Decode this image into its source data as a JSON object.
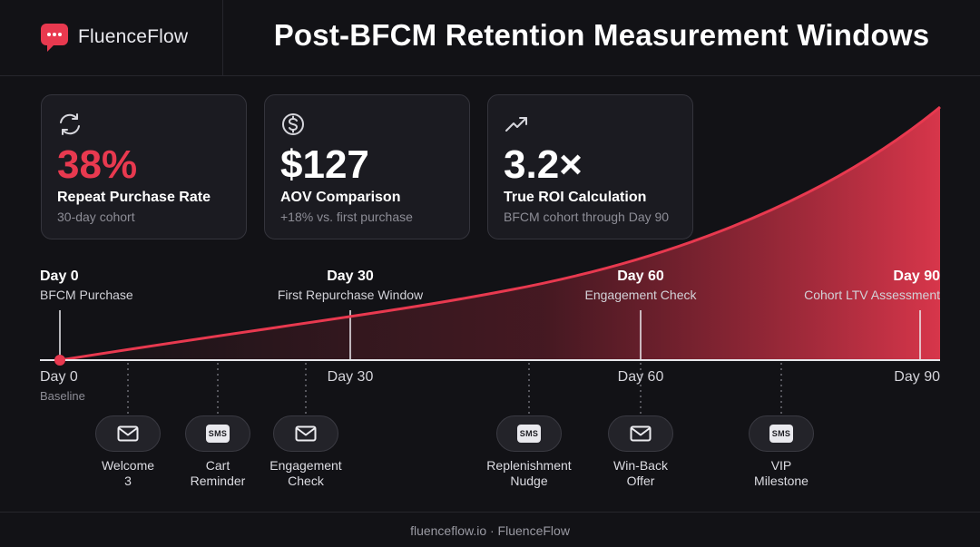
{
  "brand": {
    "name": "FluenceFlow",
    "logo_icon": "chat-bubble-icon",
    "accent": "#e8394f"
  },
  "header": {
    "title": "Post-BFCM Retention Measurement Windows"
  },
  "cards": [
    {
      "icon": "refresh-icon",
      "value": "38%",
      "label": "Repeat Purchase Rate",
      "sub": "30-day cohort"
    },
    {
      "icon": "dollar-circle-icon",
      "value": "$127",
      "label": "AOV Comparison",
      "sub": "+18% vs. first purchase"
    },
    {
      "icon": "trending-up-icon",
      "value": "3.2×",
      "label": "True ROI Calculation",
      "sub": "BFCM cohort through Day 90"
    }
  ],
  "milestones": [
    {
      "title": "Day 0",
      "sub": "BFCM Purchase"
    },
    {
      "title": "Day 30",
      "sub": "First Repurchase Window"
    },
    {
      "title": "Day 60",
      "sub": "Engagement Check"
    },
    {
      "title": "Day 90",
      "sub": "Cohort LTV Assessment"
    }
  ],
  "axis": {
    "ticks": [
      "Day 0",
      "Day 30",
      "Day 60",
      "Day 90"
    ],
    "baseline_label": "Baseline"
  },
  "touchpoints": [
    {
      "channel": "email",
      "icon": "mail-icon",
      "label_line1": "Welcome",
      "label_line2": "3"
    },
    {
      "channel": "sms",
      "icon": "sms-icon",
      "badge": "SMS",
      "label_line1": "Cart",
      "label_line2": "Reminder"
    },
    {
      "channel": "email",
      "icon": "mail-icon",
      "label_line1": "Engagement",
      "label_line2": "Check"
    },
    {
      "channel": "sms",
      "icon": "sms-icon",
      "badge": "SMS",
      "label_line1": "Replenishment",
      "label_line2": "Nudge"
    },
    {
      "channel": "email",
      "icon": "mail-icon",
      "label_line1": "Win-Back",
      "label_line2": "Offer"
    },
    {
      "channel": "sms",
      "icon": "sms-icon",
      "badge": "SMS",
      "label_line1": "VIP",
      "label_line2": "Milestone"
    }
  ],
  "footer": {
    "text": "fluenceflow.io · FluenceFlow"
  },
  "colors": {
    "background": "#121216",
    "card": "#1b1b21",
    "accent": "#e8394f",
    "axis": "#e6e6ea"
  }
}
